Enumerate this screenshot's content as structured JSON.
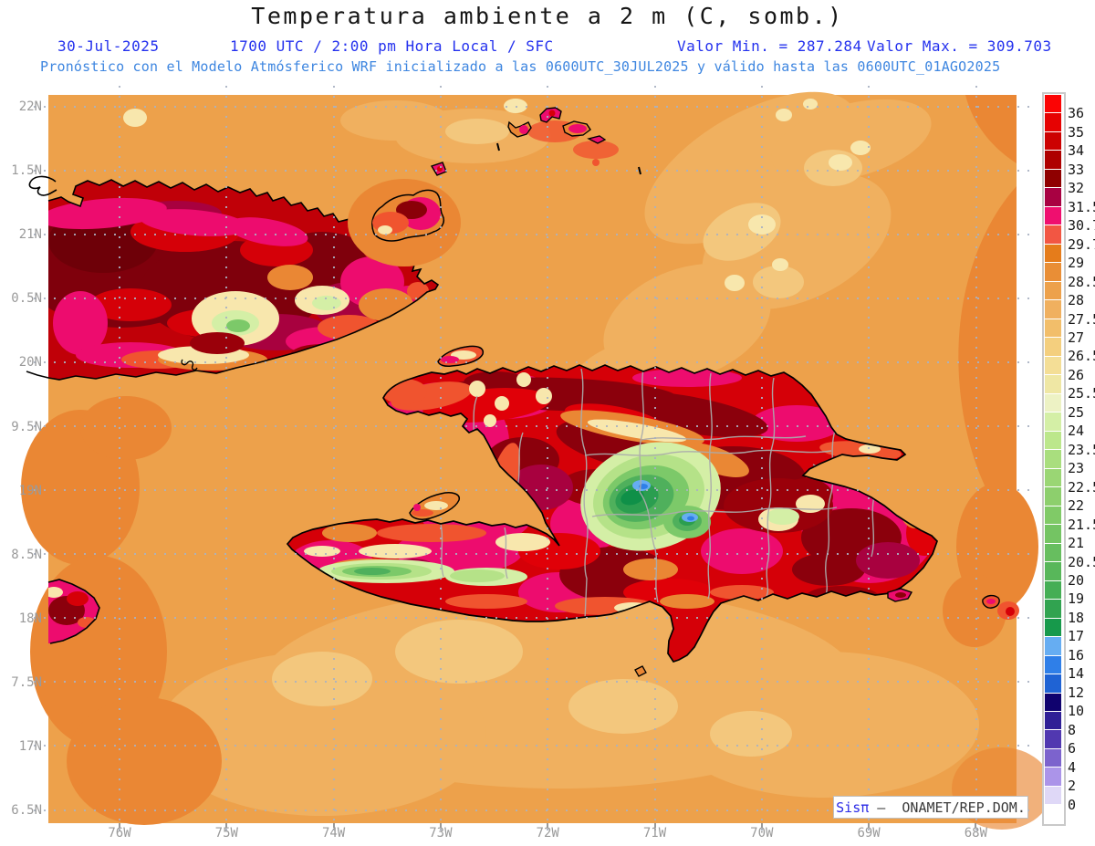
{
  "header": {
    "title": "Temperatura ambiente a 2 m (C, somb.)",
    "date": "30-Jul-2025",
    "time": "1700 UTC / 2:00 pm Hora Local / SFC",
    "valor_min": "Valor Min. = 287.284",
    "valor_max": "Valor Max. = 309.703",
    "forecast": "Pronóstico con el Modelo Atmósferico WRF inicializado a las 0600UTC_30JUL2025 y válido hasta las  0600UTC_01AGO2025"
  },
  "axes": {
    "y_labels": [
      "22N",
      "1.5N",
      "21N",
      "0.5N",
      "20N",
      "9.5N",
      "19N",
      "8.5N",
      "18N",
      "7.5N",
      "17N",
      "6.5N"
    ],
    "x_labels": [
      "76W",
      "75W",
      "74W",
      "73W",
      "72W",
      "71W",
      "70W",
      "69W",
      "68W"
    ]
  },
  "colorbar": {
    "tick_labels": [
      "36",
      "35",
      "34",
      "33",
      "32",
      "31.5",
      "30.7",
      "29.7",
      "29",
      "28.5",
      "28",
      "27.5",
      "27",
      "26.5",
      "26",
      "25.5",
      "25",
      "24",
      "23.5",
      "23",
      "22.5",
      "22",
      "21.5",
      "21",
      "20.5",
      "20",
      "19",
      "18",
      "17",
      "16",
      "14",
      "12",
      "10",
      "8",
      "6",
      "4",
      "2",
      "0"
    ],
    "segment_colors": [
      "#FB0404",
      "#E60202",
      "#CC0101",
      "#AE0000",
      "#8F0000",
      "#A80142",
      "#EF0F6F",
      "#F25643",
      "#E57C1B",
      "#E98E36",
      "#EDA14B",
      "#F0B05F",
      "#F2BE6A",
      "#F4CF7E",
      "#F4DE96",
      "#EFE7A4",
      "#EDF2C4",
      "#D4EFA6",
      "#BCE78C",
      "#A9DE7E",
      "#9AD674",
      "#8DCF6D",
      "#80CA67",
      "#74C463",
      "#67BE5F",
      "#58B75A",
      "#45AE55",
      "#31A350",
      "#17994B",
      "#66ADF2",
      "#2F7FE8",
      "#1F63D4",
      "#10026E",
      "#2F1F96",
      "#5138B0",
      "#7C63CD",
      "#AB94E9",
      "#DFD8F7",
      "#FFFFFF"
    ]
  },
  "watermark": {
    "brand": "Sisπ",
    "rest": " –  ONAMET/REP.DOM."
  },
  "colors": {
    "title_text": "#151515",
    "subtitle_blue": "#2431EE",
    "forecast_blue": "#3E86E0",
    "axis_gray": "#9a9a9a",
    "grid_dot": "#A9B2C3",
    "ocean_base": "#EDA14B",
    "coastline": "#000000",
    "province_border": "#ABABAB"
  },
  "chart_data": {
    "type": "heatmap",
    "title": "Temperatura ambiente a 2 m (C, somb.)",
    "valid_label": "30-Jul-2025 1700 UTC / 2:00 pm Hora Local / SFC",
    "value_min": 287.284,
    "value_max": 309.703,
    "colorbar_values": [
      36,
      35,
      34,
      33,
      32,
      31.5,
      30.7,
      29.7,
      29,
      28.5,
      28,
      27.5,
      27,
      26.5,
      26,
      25.5,
      25,
      24,
      23.5,
      23,
      22.5,
      22,
      21.5,
      21,
      20.5,
      20,
      19,
      18,
      17,
      16,
      14,
      12,
      10,
      8,
      6,
      4,
      2,
      0
    ],
    "x_axis_ticks": [
      "76W",
      "75W",
      "74W",
      "73W",
      "72W",
      "71W",
      "70W",
      "69W",
      "68W"
    ],
    "y_axis_ticks": [
      "22N",
      "1.5N",
      "21N",
      "0.5N",
      "20N",
      "9.5N",
      "19N",
      "8.5N",
      "18N",
      "7.5N",
      "17N",
      "6.5N"
    ],
    "legend_position": "right",
    "grid": true
  }
}
